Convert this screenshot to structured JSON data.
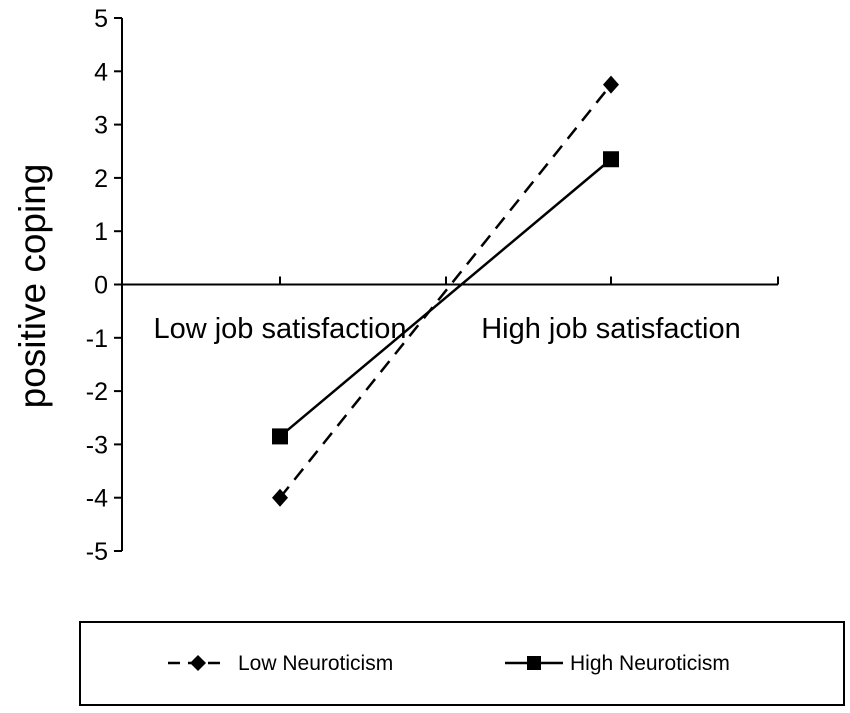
{
  "chart_data": {
    "type": "line",
    "title": "",
    "xlabel": "",
    "ylabel": "positive coping",
    "categories": [
      "Low job satisfaction",
      "High job satisfaction"
    ],
    "ylim": [
      -5,
      5
    ],
    "yticks": [
      5,
      4,
      3,
      2,
      1,
      0,
      -1,
      -2,
      -3,
      -4,
      -5
    ],
    "grid": false,
    "legend_position": "bottom",
    "series": [
      {
        "name": "Low Neuroticism",
        "values": [
          -4.0,
          3.75
        ],
        "line_style": "dashed",
        "marker": "diamond",
        "color": "#000000"
      },
      {
        "name": "High Neuroticism",
        "values": [
          -2.85,
          2.35
        ],
        "line_style": "solid",
        "marker": "square",
        "color": "#000000"
      }
    ]
  }
}
